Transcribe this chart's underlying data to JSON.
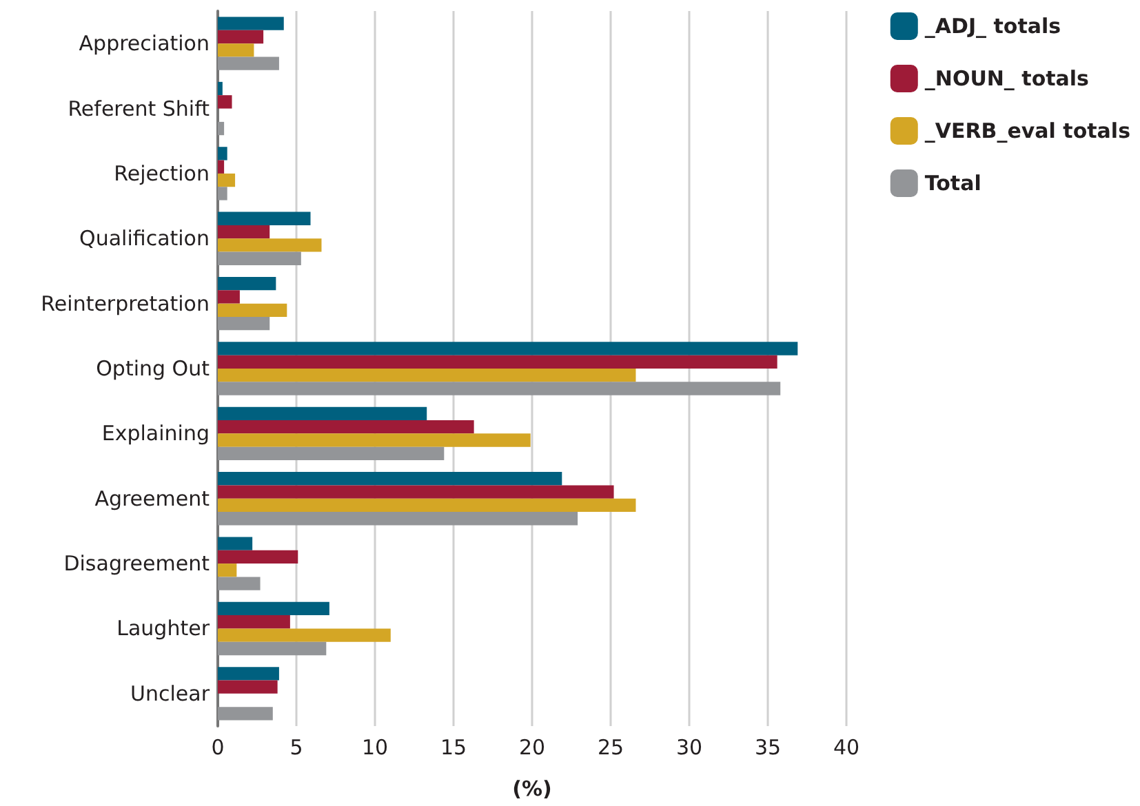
{
  "chart_data": {
    "type": "bar",
    "orientation": "horizontal",
    "xlabel": "(%)",
    "categories": [
      "Appreciation",
      "Referent Shift",
      "Rejection",
      "Qualification",
      "Reinterpretation",
      "Opting Out",
      "Explaining",
      "Agreement",
      "Disagreement",
      "Laughter",
      "Unclear"
    ],
    "series": [
      {
        "name": "_ADJ_ totals",
        "color": "#00607f",
        "values": [
          4.2,
          0.3,
          0.6,
          5.9,
          3.7,
          36.9,
          13.3,
          21.9,
          2.2,
          7.1,
          3.9
        ]
      },
      {
        "name": "_NOUN_ totals",
        "color": "#9e1b37",
        "values": [
          2.9,
          0.9,
          0.4,
          3.3,
          1.4,
          35.6,
          16.3,
          25.2,
          5.1,
          4.6,
          3.8
        ]
      },
      {
        "name": "_VERB_eval totals",
        "color": "#d4a625",
        "values": [
          2.3,
          0,
          1.1,
          6.6,
          4.4,
          26.6,
          19.9,
          26.6,
          1.2,
          11.0,
          0
        ]
      },
      {
        "name": "Total",
        "color": "#939598",
        "values": [
          3.9,
          0.4,
          0.6,
          5.3,
          3.3,
          35.8,
          14.4,
          22.9,
          2.7,
          6.9,
          3.5
        ]
      }
    ],
    "xlim": [
      0,
      40
    ],
    "xticks": [
      0,
      5,
      10,
      15,
      20,
      25,
      30,
      35,
      40
    ],
    "grid": "x",
    "legend": "top right"
  }
}
